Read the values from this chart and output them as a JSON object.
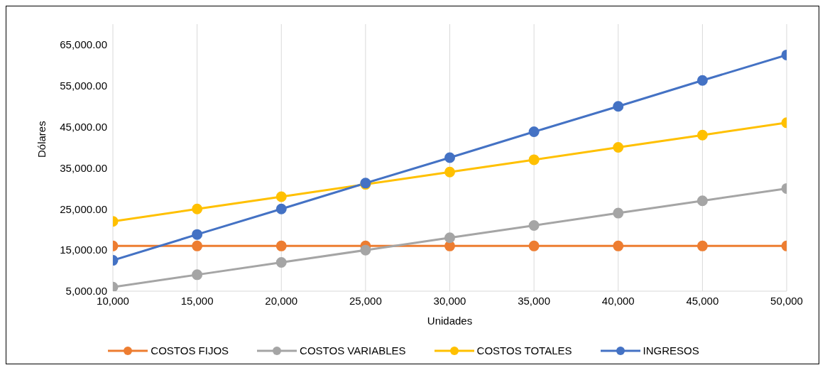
{
  "chart_data": {
    "type": "line",
    "xlabel": "Unidades",
    "ylabel": "Dólares",
    "x": [
      10000,
      15000,
      20000,
      25000,
      30000,
      35000,
      40000,
      45000,
      50000
    ],
    "series": [
      {
        "name": "COSTOS FIJOS",
        "color": "#ed7d31",
        "values": [
          16000,
          16000,
          16000,
          16000,
          16000,
          16000,
          16000,
          16000,
          16000
        ]
      },
      {
        "name": "COSTOS VARIABLES",
        "color": "#a5a5a5",
        "values": [
          6000,
          9000,
          12000,
          15000,
          18000,
          21000,
          24000,
          27000,
          30000
        ]
      },
      {
        "name": "COSTOS TOTALES",
        "color": "#ffc000",
        "values": [
          22000,
          25000,
          28000,
          31000,
          34000,
          37000,
          40000,
          43000,
          46000
        ]
      },
      {
        "name": "INGRESOS",
        "color": "#4472c4",
        "values": [
          12500,
          18800,
          25000,
          31300,
          37500,
          43800,
          50000,
          56300,
          62500
        ]
      }
    ],
    "xlim": [
      10000,
      50000
    ],
    "xticks": [
      {
        "value": 10000,
        "label": "10,000"
      },
      {
        "value": 15000,
        "label": "15,000"
      },
      {
        "value": 20000,
        "label": "20,000"
      },
      {
        "value": 25000,
        "label": "25,000"
      },
      {
        "value": 30000,
        "label": "30,000"
      },
      {
        "value": 35000,
        "label": "35,000"
      },
      {
        "value": 40000,
        "label": "40,000"
      },
      {
        "value": 45000,
        "label": "45,000"
      },
      {
        "value": 50000,
        "label": "50,000"
      }
    ],
    "ylim": [
      5000,
      70000
    ],
    "yticks": [
      {
        "value": 5000,
        "label": "5,000.00"
      },
      {
        "value": 15000,
        "label": "15,000.00"
      },
      {
        "value": 25000,
        "label": "25,000.00"
      },
      {
        "value": 35000,
        "label": "35,000.00"
      },
      {
        "value": 45000,
        "label": "45,000.00"
      },
      {
        "value": 55000,
        "label": "55,000.00"
      },
      {
        "value": 65000,
        "label": "65,000.00"
      }
    ],
    "grid": "x",
    "legend": "bottom",
    "marker": "circle",
    "line_style": "solid"
  }
}
